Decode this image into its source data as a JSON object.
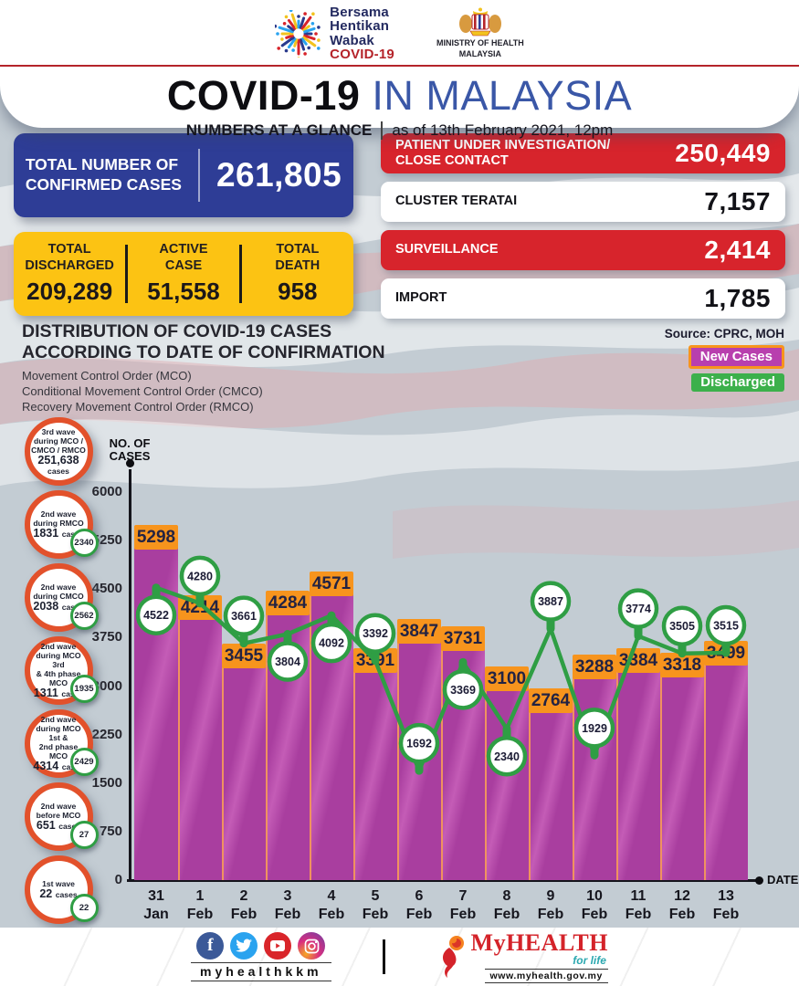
{
  "header": {
    "campaign_logo_lines": [
      "Bersama",
      "Hentikan",
      "Wabak",
      "COVID-19"
    ],
    "ministry_line1": "MINISTRY OF HEALTH",
    "ministry_line2": "MALAYSIA",
    "title_black": "COVID-19",
    "title_blue": "IN MALAYSIA",
    "subtitle_bold": "NUMBERS AT A GLANCE",
    "subtitle_rest": "as of 13th February 2021, 12pm"
  },
  "stats": {
    "confirmed_label_line1": "TOTAL NUMBER OF",
    "confirmed_label_line2": "CONFIRMED CASES",
    "confirmed_value": "261,805",
    "yellow_cells": [
      {
        "label": "TOTAL\nDISCHARGED",
        "value": "209,289"
      },
      {
        "label": "ACTIVE\nCASE",
        "value": "51,558"
      },
      {
        "label": "TOTAL\nDEATH",
        "value": "958"
      }
    ],
    "right_rows": [
      {
        "label": "PATIENT UNDER INVESTIGATION/ CLOSE CONTACT",
        "value": "250,449",
        "style": "red"
      },
      {
        "label": "CLUSTER TERATAI",
        "value": "7,157",
        "style": "white"
      },
      {
        "label": "SURVEILLANCE",
        "value": "2,414",
        "style": "red"
      },
      {
        "label": "IMPORT",
        "value": "1,785",
        "style": "white"
      }
    ]
  },
  "distribution": {
    "title_line1": "DISTRIBUTION OF COVID-19 CASES",
    "title_line2": "ACCORDING TO DATE OF CONFIRMATION",
    "mco_lines": [
      "Movement Control Order (MCO)",
      "Conditional Movement Control Order (CMCO)",
      "Recovery Movement Control Order (RMCO)"
    ],
    "source": "Source: CPRC, MOH",
    "legend": [
      {
        "label": "New Cases",
        "color": "#b83fae",
        "border": "#f7941d"
      },
      {
        "label": "Discharged",
        "color": "#3cb04b",
        "border": null
      }
    ]
  },
  "waves": [
    {
      "lines": [
        "3rd wave",
        "during MCO /",
        "CMCO / RMCO"
      ],
      "number": "251,638",
      "suffix": "cases",
      "suffix_inline": false,
      "badge": null
    },
    {
      "lines": [
        "2nd wave",
        "during RMCO"
      ],
      "number": "1831",
      "suffix": "cases",
      "suffix_inline": true,
      "badge": "2340"
    },
    {
      "lines": [
        "2nd wave",
        "during CMCO"
      ],
      "number": "2038",
      "suffix": "cases",
      "suffix_inline": true,
      "badge": "2562"
    },
    {
      "lines": [
        "2nd wave",
        "during MCO 3rd",
        "& 4th phase MCO"
      ],
      "number": "1311",
      "suffix": "cases",
      "suffix_inline": true,
      "badge": "1935"
    },
    {
      "lines": [
        "2nd wave",
        "during MCO 1st &",
        "2nd phase MCO"
      ],
      "number": "4314",
      "suffix": "cases",
      "suffix_inline": true,
      "badge": "2429"
    },
    {
      "lines": [
        "2nd wave",
        "before MCO"
      ],
      "number": "651",
      "suffix": "cases",
      "suffix_inline": true,
      "badge": "27"
    },
    {
      "lines": [
        "1st wave"
      ],
      "number": "22",
      "suffix": "cases",
      "suffix_inline": true,
      "badge": "22"
    }
  ],
  "chart_data": {
    "type": "bar",
    "title": "DISTRIBUTION OF COVID-19 CASES ACCORDING TO DATE OF CONFIRMATION",
    "ylabel": "NO. OF CASES",
    "xlabel": "DATE",
    "ylim": [
      0,
      6000
    ],
    "yticks": [
      0,
      750,
      1500,
      2250,
      3000,
      3750,
      4500,
      5250,
      6000
    ],
    "grid": false,
    "legend_position": "top-right",
    "categories": [
      "31 Jan",
      "1 Feb",
      "2 Feb",
      "3 Feb",
      "4 Feb",
      "5 Feb",
      "6 Feb",
      "7 Feb",
      "8 Feb",
      "9 Feb",
      "10 Feb",
      "11 Feb",
      "12 Feb",
      "13 Feb"
    ],
    "series": [
      {
        "name": "New Cases",
        "type": "bar",
        "color": "#a93e9f",
        "label_bg": "#f7941d",
        "values": [
          5298,
          4214,
          3455,
          4284,
          4571,
          3391,
          3847,
          3731,
          3100,
          2764,
          3288,
          3384,
          3318,
          3499
        ]
      },
      {
        "name": "Discharged",
        "type": "line",
        "color": "#2f9e44",
        "values": [
          4522,
          4280,
          3661,
          3804,
          4092,
          3392,
          1692,
          3369,
          2340,
          3887,
          1929,
          3774,
          3505,
          3515
        ]
      }
    ]
  },
  "footer": {
    "icons": [
      "facebook-icon",
      "twitter-icon",
      "youtube-icon",
      "instagram-icon"
    ],
    "handle": "myhealthkkm",
    "brand_name": "MyHEALTH",
    "brand_tagline": "for life",
    "brand_url": "www.myhealth.gov.my"
  }
}
